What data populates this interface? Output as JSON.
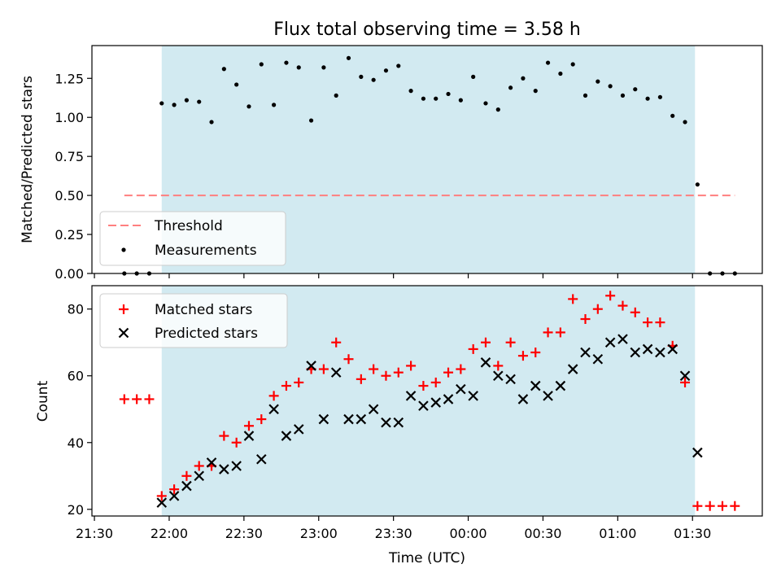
{
  "chart_data": [
    {
      "type": "scatter",
      "title": "Flux total observing time = 3.58 h",
      "xlabel": "",
      "ylabel": "Matched/Predicted stars",
      "ylim": [
        0,
        1.46
      ],
      "yticks": [
        "0.00",
        "0.25",
        "0.50",
        "0.75",
        "1.00",
        "1.25"
      ],
      "yticks_values": [
        0,
        0.25,
        0.5,
        0.75,
        1.0,
        1.25
      ],
      "shaded_region": {
        "x_start": "21:57",
        "x_end": "01:31",
        "color": "#add8e6"
      },
      "threshold": {
        "name": "Threshold",
        "value": 0.5,
        "x_start": "21:42",
        "x_end": "01:47",
        "color": "#ff7f7f"
      },
      "legend": {
        "position": "lower-left",
        "entries": [
          "Threshold",
          "Measurements"
        ]
      },
      "series": [
        {
          "name": "Measurements",
          "marker": "dot",
          "color": "#000000",
          "x": [
            "21:42",
            "21:47",
            "21:52",
            "21:57",
            "22:02",
            "22:07",
            "22:12",
            "22:17",
            "22:22",
            "22:27",
            "22:32",
            "22:37",
            "22:42",
            "22:47",
            "22:52",
            "22:57",
            "23:02",
            "23:07",
            "23:12",
            "23:17",
            "23:22",
            "23:27",
            "23:32",
            "23:37",
            "23:42",
            "23:47",
            "23:52",
            "23:57",
            "00:02",
            "00:07",
            "00:12",
            "00:17",
            "00:22",
            "00:27",
            "00:32",
            "00:37",
            "00:42",
            "00:47",
            "00:52",
            "00:57",
            "01:02",
            "01:07",
            "01:12",
            "01:17",
            "01:22",
            "01:27",
            "01:32",
            "01:37",
            "01:42",
            "01:47"
          ],
          "values": [
            0,
            0,
            0,
            1.09,
            1.08,
            1.11,
            1.1,
            0.97,
            1.31,
            1.21,
            1.07,
            1.34,
            1.08,
            1.35,
            1.32,
            0.98,
            1.32,
            1.14,
            1.38,
            1.26,
            1.24,
            1.3,
            1.33,
            1.17,
            1.12,
            1.12,
            1.15,
            1.11,
            1.26,
            1.09,
            1.05,
            1.19,
            1.25,
            1.17,
            1.35,
            1.28,
            1.34,
            1.14,
            1.23,
            1.2,
            1.14,
            1.18,
            1.12,
            1.13,
            1.01,
            0.97,
            0.57,
            0,
            0,
            0
          ]
        }
      ]
    },
    {
      "type": "scatter",
      "title": "",
      "xlabel": "Time (UTC)",
      "ylabel": "Count",
      "ylim": [
        18,
        87
      ],
      "yticks": [
        "20",
        "40",
        "60",
        "80"
      ],
      "yticks_values": [
        20,
        40,
        60,
        80
      ],
      "xticks": [
        "21:30",
        "22:00",
        "22:30",
        "23:00",
        "23:30",
        "00:00",
        "00:30",
        "01:00",
        "01:30"
      ],
      "xlim": [
        "21:29",
        "01:58"
      ],
      "shaded_region": {
        "x_start": "21:57",
        "x_end": "01:31",
        "color": "#add8e6"
      },
      "legend": {
        "position": "top-left",
        "entries": [
          "Matched stars",
          "Predicted stars"
        ]
      },
      "series": [
        {
          "name": "Matched stars",
          "marker": "plus",
          "color": "#ff0000",
          "x": [
            "21:42",
            "21:47",
            "21:52",
            "21:57",
            "22:02",
            "22:07",
            "22:12",
            "22:17",
            "22:22",
            "22:27",
            "22:32",
            "22:37",
            "22:42",
            "22:47",
            "22:52",
            "22:57",
            "23:02",
            "23:07",
            "23:12",
            "23:17",
            "23:22",
            "23:27",
            "23:32",
            "23:37",
            "23:42",
            "23:47",
            "23:52",
            "23:57",
            "00:02",
            "00:07",
            "00:12",
            "00:17",
            "00:22",
            "00:27",
            "00:32",
            "00:37",
            "00:42",
            "00:47",
            "00:52",
            "00:57",
            "01:02",
            "01:07",
            "01:12",
            "01:17",
            "01:22",
            "01:27",
            "01:32",
            "01:37",
            "01:42",
            "01:47"
          ],
          "values": [
            53,
            53,
            53,
            24,
            26,
            30,
            33,
            33,
            42,
            40,
            45,
            47,
            54,
            57,
            58,
            62,
            62,
            70,
            65,
            59,
            62,
            60,
            61,
            63,
            57,
            58,
            61,
            62,
            68,
            70,
            63,
            70,
            66,
            67,
            73,
            73,
            83,
            77,
            80,
            84,
            81,
            79,
            76,
            76,
            69,
            58,
            21,
            21,
            21,
            21
          ]
        },
        {
          "name": "Predicted stars",
          "marker": "x",
          "color": "#000000",
          "x": [
            "21:57",
            "22:02",
            "22:07",
            "22:12",
            "22:17",
            "22:22",
            "22:27",
            "22:32",
            "22:37",
            "22:42",
            "22:47",
            "22:52",
            "22:57",
            "23:02",
            "23:07",
            "23:12",
            "23:17",
            "23:22",
            "23:27",
            "23:32",
            "23:37",
            "23:42",
            "23:47",
            "23:52",
            "23:57",
            "00:02",
            "00:07",
            "00:12",
            "00:17",
            "00:22",
            "00:27",
            "00:32",
            "00:37",
            "00:42",
            "00:47",
            "00:52",
            "00:57",
            "01:02",
            "01:07",
            "01:12",
            "01:17",
            "01:22",
            "01:27",
            "01:32"
          ],
          "values": [
            22,
            24,
            27,
            30,
            34,
            32,
            33,
            42,
            35,
            50,
            42,
            44,
            63,
            47,
            61,
            47,
            47,
            50,
            46,
            46,
            54,
            51,
            52,
            53,
            56,
            54,
            64,
            60,
            59,
            53,
            57,
            54,
            57,
            62,
            67,
            65,
            70,
            71,
            67,
            68,
            67,
            68,
            60,
            37
          ]
        }
      ]
    }
  ]
}
